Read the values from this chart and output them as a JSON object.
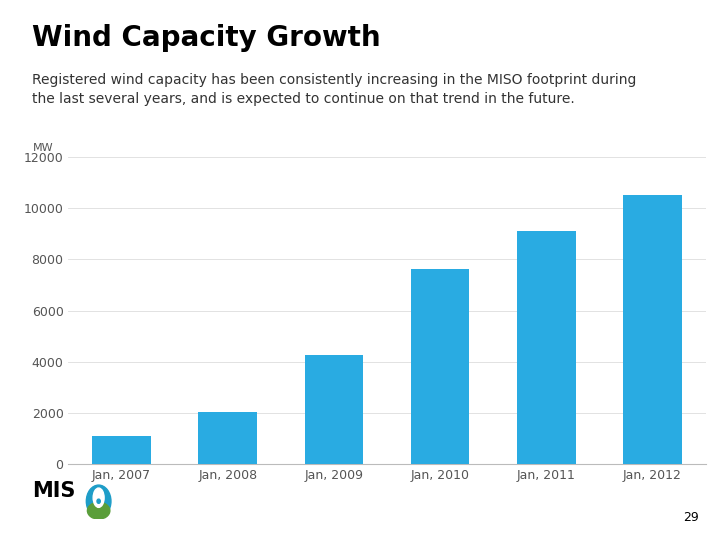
{
  "title": "Wind Capacity Growth",
  "subtitle": "Registered wind capacity has been consistently increasing in the MISO footprint during\nthe last several years, and is expected to continue on that trend in the future.",
  "mw_label": "MW",
  "categories": [
    "Jan, 2007",
    "Jan, 2008",
    "Jan, 2009",
    "Jan, 2010",
    "Jan, 2011",
    "Jan, 2012"
  ],
  "values": [
    1100,
    2050,
    4250,
    7600,
    9100,
    10500
  ],
  "bar_color": "#29ABE2",
  "ylim": [
    0,
    12000
  ],
  "yticks": [
    0,
    2000,
    4000,
    6000,
    8000,
    10000,
    12000
  ],
  "background_color": "#ffffff",
  "title_fontsize": 20,
  "subtitle_fontsize": 10,
  "mw_fontsize": 8,
  "tick_fontsize": 9,
  "page_number": "29",
  "title_color": "#000000",
  "subtitle_color": "#333333",
  "tick_color": "#555555",
  "axis_color": "#bbbbbb",
  "grid_color": "#dddddd"
}
